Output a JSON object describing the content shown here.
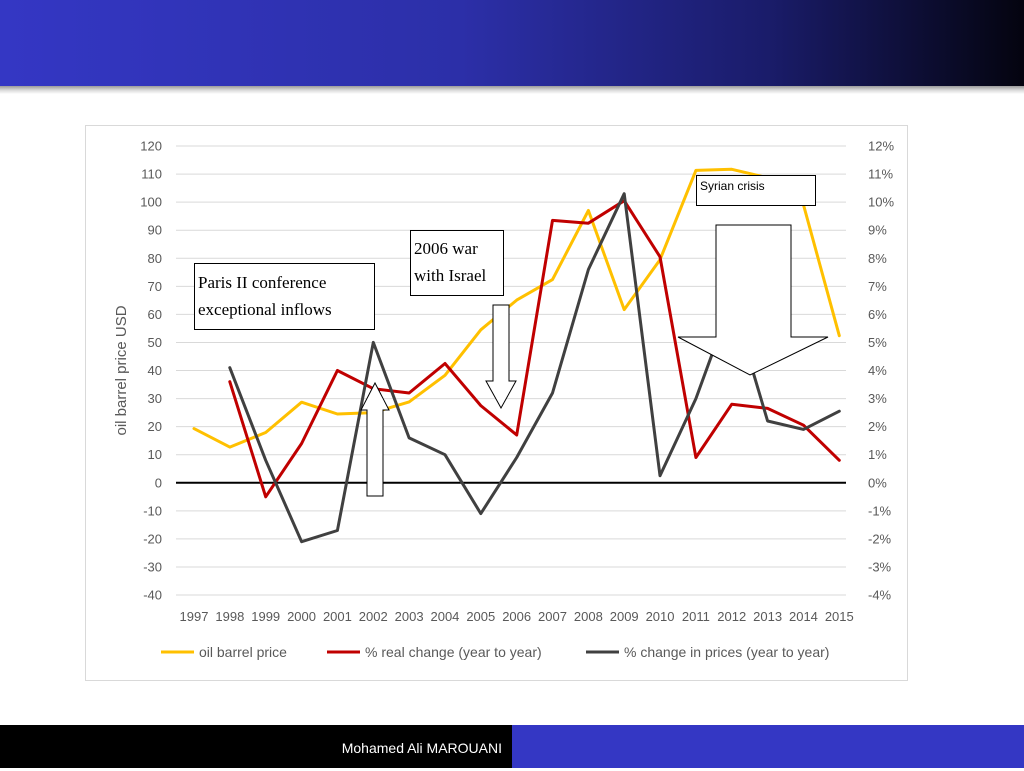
{
  "footer": {
    "author": "Mohamed Ali MAROUANI"
  },
  "colors": {
    "header": "#3437c4",
    "oil": "#ffc000",
    "real": "#c00000",
    "prices": "#404040"
  },
  "chart_data": {
    "type": "line",
    "ylabel": "oil barrel price USD",
    "x": [
      "1997",
      "1998",
      "1999",
      "2000",
      "2001",
      "2002",
      "2003",
      "2004",
      "2005",
      "2006",
      "2007",
      "2008",
      "2009",
      "2010",
      "2011",
      "2012",
      "2013",
      "2014",
      "2015"
    ],
    "left_axis": {
      "min": -40,
      "max": 120,
      "step": 10,
      "ticks": [
        "120",
        "110",
        "100",
        "90",
        "80",
        "70",
        "60",
        "50",
        "40",
        "30",
        "20",
        "10",
        "0",
        "-10",
        "-20",
        "-30",
        "-40"
      ]
    },
    "right_axis": {
      "min": -4,
      "max": 12,
      "step": 1,
      "ticks": [
        "12%",
        "11%",
        "10%",
        "9%",
        "8%",
        "7%",
        "6%",
        "5%",
        "4%",
        "3%",
        "2%",
        "1%",
        "0%",
        "-1%",
        "-2%",
        "-3%",
        "-4%"
      ]
    },
    "gridlines": true,
    "legend_position": "bottom",
    "series": [
      {
        "name": "oil barrel price",
        "axis": "left",
        "color": "#ffc000",
        "values": [
          19.3,
          12.7,
          17.9,
          28.7,
          24.5,
          25.0,
          28.8,
          38.3,
          54.5,
          65.1,
          72.4,
          97.0,
          61.7,
          79.5,
          111.3,
          111.7,
          108.7,
          99.0,
          52.4
        ]
      },
      {
        "name": "% real change (year to year)",
        "axis": "left",
        "color": "#c00000",
        "values": [
          null,
          36,
          -5,
          14,
          40,
          33.5,
          32,
          42.5,
          27.5,
          17,
          93.5,
          92.5,
          100.5,
          80.5,
          9,
          28,
          26.5,
          20.5,
          8
        ]
      },
      {
        "name": "% change in prices (year to year)",
        "axis": "right",
        "color": "#404040",
        "values": [
          null,
          4.1,
          0.8,
          -2.1,
          -1.7,
          5.0,
          1.6,
          1.0,
          -1.1,
          0.9,
          3.2,
          7.6,
          10.3,
          0.25,
          3.0,
          6.5,
          2.2,
          1.9,
          2.55
        ]
      }
    ],
    "annotations": [
      {
        "text": "Paris II conference exceptional inflows"
      },
      {
        "text": "2006 war with Israel"
      },
      {
        "text": "Syrian crisis"
      }
    ]
  }
}
